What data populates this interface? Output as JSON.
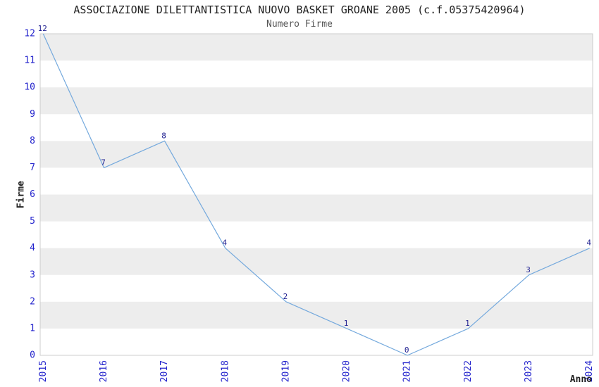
{
  "chart_data": {
    "type": "line",
    "title": "ASSOCIAZIONE DILETTANTISTICA NUOVO BASKET GROANE 2005 (c.f.05375420964)",
    "subtitle": "Numero Firme",
    "xlabel": "Anno",
    "ylabel": "Firme",
    "x": [
      2015,
      2016,
      2017,
      2018,
      2019,
      2020,
      2021,
      2022,
      2023,
      2024
    ],
    "values": [
      12,
      7,
      8,
      4,
      2,
      1,
      0,
      1,
      3,
      4
    ],
    "point_labels": [
      "12",
      "7",
      "8",
      "4",
      "2",
      "1",
      "0",
      "1",
      "3",
      "4"
    ],
    "xtick_labels": [
      "2015",
      "2016",
      "2017",
      "2018",
      "2019",
      "2020",
      "2021",
      "2022",
      "2023",
      "2024"
    ],
    "ytick_labels": [
      "0",
      "1",
      "2",
      "3",
      "4",
      "5",
      "6",
      "7",
      "8",
      "9",
      "10",
      "11",
      "12"
    ],
    "yticks": [
      0,
      1,
      2,
      3,
      4,
      5,
      6,
      7,
      8,
      9,
      10,
      11,
      12
    ],
    "xlim": [
      2014.95,
      2024.05
    ],
    "ylim": [
      0,
      12
    ],
    "legend": "none",
    "grid": "alternating-horizontal-bands",
    "band_rows": [
      [
        1,
        2
      ],
      [
        3,
        4
      ],
      [
        5,
        6
      ],
      [
        7,
        8
      ],
      [
        9,
        10
      ],
      [
        11,
        12
      ]
    ],
    "colors": {
      "line": "#74a9dd",
      "tick_label": "#2222cc",
      "point_label": "#1d1d8f",
      "band": "#ededed",
      "frame": "#cccccc",
      "title": "#222222",
      "subtitle": "#555555",
      "axis_label": "#222222",
      "background": "#ffffff"
    }
  }
}
